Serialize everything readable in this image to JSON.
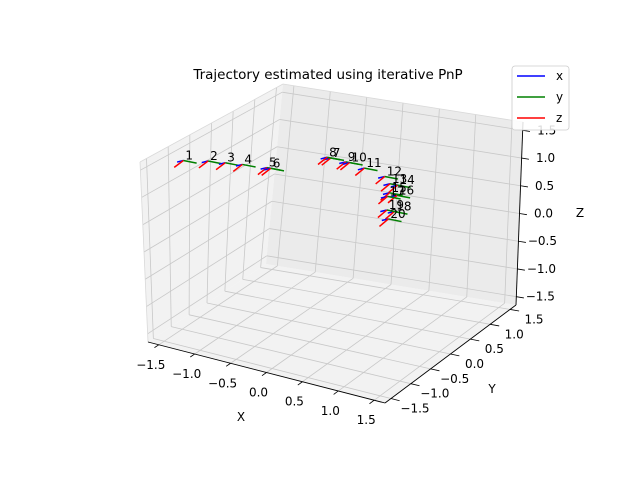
{
  "chart_data": {
    "type": "scatter",
    "projection": "3d",
    "title": "Trajectory estimated using iterative PnP",
    "xlabel": "X",
    "ylabel": "Y",
    "zlabel": "Z",
    "xlim": [
      -1.5,
      1.5
    ],
    "ylim": [
      -1.5,
      1.5
    ],
    "zlim": [
      -1.5,
      1.5
    ],
    "ticks": [
      -1.5,
      -1.0,
      -0.5,
      0.0,
      0.5,
      1.0,
      1.5
    ],
    "tick_labels": [
      "−1.5",
      "−1.0",
      "−0.5",
      "0.0",
      "0.5",
      "1.0",
      "1.5"
    ],
    "grid": true,
    "legend": {
      "placement": "top-right",
      "entries": [
        {
          "label": "x",
          "color": "#0000ff"
        },
        {
          "label": "y",
          "color": "#008000"
        },
        {
          "label": "z",
          "color": "#ff0000"
        }
      ]
    },
    "axis_colors": {
      "x": "#0000ff",
      "y": "#008000",
      "z": "#ff0000"
    },
    "poses": [
      {
        "label": "1",
        "x": -1.45,
        "y": -1.0,
        "z": 1.45
      },
      {
        "label": "2",
        "x": -1.15,
        "y": -0.95,
        "z": 1.5
      },
      {
        "label": "3",
        "x": -0.95,
        "y": -0.9,
        "z": 1.5
      },
      {
        "label": "4",
        "x": -0.75,
        "y": -0.85,
        "z": 1.5
      },
      {
        "label": "5",
        "x": -0.45,
        "y": -0.8,
        "z": 1.5
      },
      {
        "label": "6",
        "x": -0.4,
        "y": -0.8,
        "z": 1.5
      },
      {
        "label": "7",
        "x": 0.15,
        "y": -0.35,
        "z": 1.62
      },
      {
        "label": "8",
        "x": 0.1,
        "y": -0.35,
        "z": 1.62
      },
      {
        "label": "9",
        "x": 0.35,
        "y": -0.35,
        "z": 1.6
      },
      {
        "label": "10",
        "x": 0.4,
        "y": -0.35,
        "z": 1.6
      },
      {
        "label": "11",
        "x": 0.6,
        "y": -0.35,
        "z": 1.55
      },
      {
        "label": "12",
        "x": 0.9,
        "y": -0.4,
        "z": 1.5
      },
      {
        "label": "13",
        "x": 1.0,
        "y": -0.45,
        "z": 1.42
      },
      {
        "label": "14",
        "x": 1.1,
        "y": -0.45,
        "z": 1.42
      },
      {
        "label": "15",
        "x": 1.05,
        "y": -0.55,
        "z": 1.32
      },
      {
        "label": "16",
        "x": 1.15,
        "y": -0.55,
        "z": 1.3
      },
      {
        "label": "17",
        "x": 1.05,
        "y": -0.6,
        "z": 1.28
      },
      {
        "label": "18",
        "x": 1.2,
        "y": -0.7,
        "z": 1.1
      },
      {
        "label": "19",
        "x": 1.1,
        "y": -0.7,
        "z": 1.1
      },
      {
        "label": "20",
        "x": 1.15,
        "y": -0.75,
        "z": 0.98
      }
    ]
  }
}
